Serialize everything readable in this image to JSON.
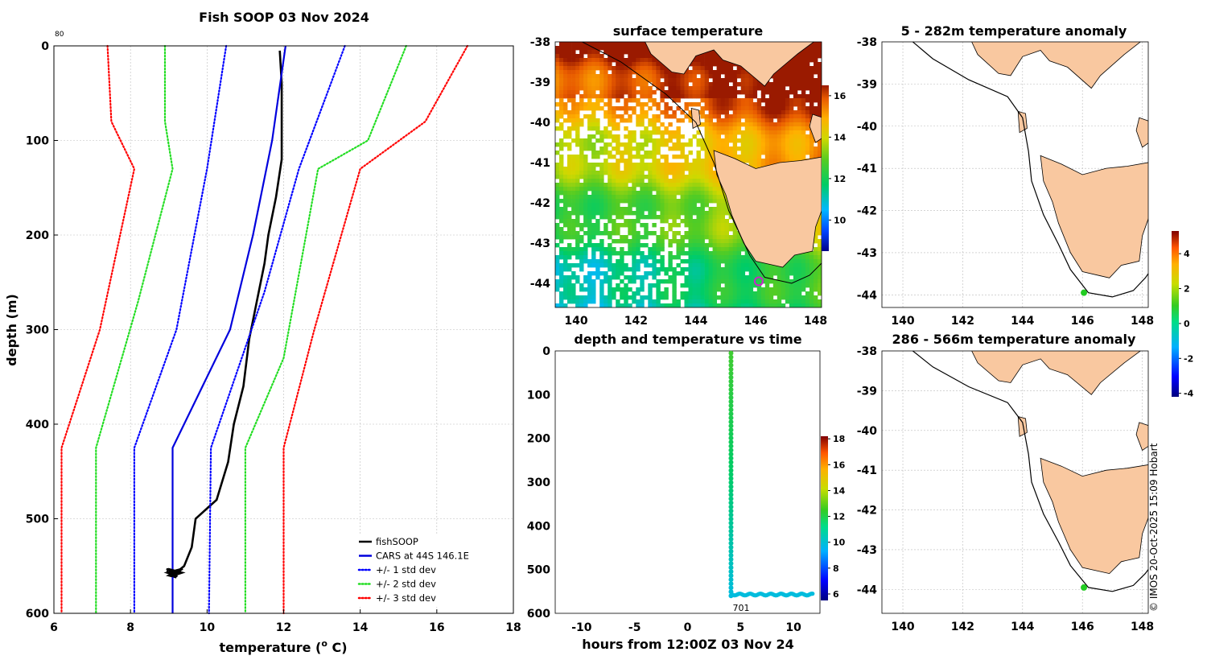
{
  "profile": {
    "title": "Fish SOOP 03 Nov 2024",
    "top_label": "80",
    "xlabel_pre": "temperature (",
    "xlabel_sup": "o",
    "xlabel_post": " C)",
    "ylabel": "depth (m)"
  },
  "surface": {
    "title": "surface temperature"
  },
  "timeplot": {
    "title": "depth and temperature vs time",
    "xlabel": "hours from 12:00Z 03 Nov 24",
    "annotation": "701"
  },
  "anom1": {
    "title": "5 - 282m temperature anomaly"
  },
  "anom2": {
    "title": "286 - 566m temperature anomaly"
  },
  "credit": "© IMOS 20-Oct-2025 15:09 Hobart",
  "colors": {
    "soop": "#000000",
    "cars": "#0000dd",
    "sd1": "#0000ff",
    "sd2": "#22dd22",
    "sd3": "#ff0000",
    "land": "#f9c8a0",
    "marker": "#22cc22",
    "marker_ring": "#cc22cc"
  },
  "chart_data": [
    {
      "type": "line",
      "name": "profile",
      "xlim": [
        6,
        18
      ],
      "ylim": [
        0,
        600
      ],
      "xticks": [
        6,
        8,
        10,
        12,
        14,
        16,
        18
      ],
      "yticks": [
        0,
        100,
        200,
        300,
        400,
        500,
        600
      ],
      "grid": true,
      "legend": [
        "fishSOOP",
        "CARS at 44S 146.1E",
        "+/- 1 std dev",
        "+/- 2 std dev",
        "+/- 3 std dev"
      ],
      "series": [
        {
          "name": "fishSOOP",
          "style": "solid-thick",
          "color": "soop",
          "points": [
            [
              11.9,
              5
            ],
            [
              11.95,
              40
            ],
            [
              11.95,
              120
            ],
            [
              11.8,
              160
            ],
            [
              11.6,
              200
            ],
            [
              11.5,
              230
            ],
            [
              11.3,
              270
            ],
            [
              11.1,
              310
            ],
            [
              10.95,
              360
            ],
            [
              10.7,
              400
            ],
            [
              10.55,
              440
            ],
            [
              10.25,
              480
            ],
            [
              9.7,
              500
            ],
            [
              9.6,
              530
            ],
            [
              9.4,
              550
            ],
            [
              9.1,
              560
            ],
            [
              9.0,
              557
            ],
            [
              9.3,
              554
            ],
            [
              9.0,
              560
            ],
            [
              9.2,
              562
            ]
          ]
        },
        {
          "name": "CARS at 44S 146.1E",
          "style": "solid",
          "color": "cars",
          "points": [
            [
              12.05,
              0
            ],
            [
              11.7,
              100
            ],
            [
              11.2,
              200
            ],
            [
              10.6,
              300
            ],
            [
              9.1,
              425
            ],
            [
              9.1,
              600
            ]
          ]
        },
        {
          "name": "+1 std dev",
          "style": "dotted",
          "color": "sd1",
          "points": [
            [
              13.6,
              0
            ],
            [
              12.4,
              130
            ],
            [
              11.5,
              260
            ],
            [
              10.1,
              425
            ],
            [
              10.05,
              600
            ]
          ]
        },
        {
          "name": "-1 std dev",
          "style": "dotted",
          "color": "sd1",
          "points": [
            [
              10.5,
              0
            ],
            [
              10.0,
              130
            ],
            [
              9.2,
              300
            ],
            [
              8.1,
              425
            ],
            [
              8.1,
              600
            ]
          ]
        },
        {
          "name": "+2 std dev",
          "style": "dotted",
          "color": "sd2",
          "points": [
            [
              15.2,
              0
            ],
            [
              14.2,
              100
            ],
            [
              12.9,
              130
            ],
            [
              12.0,
              330
            ],
            [
              11.0,
              425
            ],
            [
              11.0,
              600
            ]
          ]
        },
        {
          "name": "-2 std dev",
          "style": "dotted",
          "color": "sd2",
          "points": [
            [
              8.9,
              0
            ],
            [
              8.9,
              80
            ],
            [
              9.1,
              130
            ],
            [
              8.2,
              270
            ],
            [
              7.1,
              425
            ],
            [
              7.1,
              600
            ]
          ]
        },
        {
          "name": "+3 std dev",
          "style": "dotted",
          "color": "sd3",
          "points": [
            [
              16.8,
              0
            ],
            [
              15.7,
              80
            ],
            [
              14.0,
              130
            ],
            [
              12.8,
              300
            ],
            [
              12.0,
              425
            ],
            [
              12.0,
              600
            ]
          ]
        },
        {
          "name": "-3 std dev",
          "style": "dotted",
          "color": "sd3",
          "points": [
            [
              7.4,
              0
            ],
            [
              7.5,
              80
            ],
            [
              8.1,
              130
            ],
            [
              7.2,
              300
            ],
            [
              6.2,
              425
            ],
            [
              6.2,
              600
            ]
          ]
        }
      ]
    },
    {
      "type": "heatmap",
      "name": "surface",
      "title": "surface temperature",
      "xlim": [
        139.3,
        148.2
      ],
      "ylim": [
        -44.6,
        -38
      ],
      "xticks": [
        140,
        142,
        144,
        146,
        148
      ],
      "yticks": [
        -38,
        -39,
        -40,
        -41,
        -42,
        -43,
        -44
      ],
      "colorbar": {
        "range": [
          8.5,
          16.5
        ],
        "ticks": [
          10,
          12,
          14,
          16
        ]
      },
      "marker": [
        146.1,
        -43.95
      ]
    },
    {
      "type": "scatter",
      "name": "timeplot",
      "title": "depth and temperature vs time",
      "xlim": [
        -12.5,
        12.5
      ],
      "ylim": [
        0,
        600
      ],
      "xticks": [
        -10,
        -5,
        0,
        5,
        10
      ],
      "yticks": [
        0,
        100,
        200,
        300,
        400,
        500,
        600
      ],
      "colorbar": {
        "range": [
          5.5,
          18.2
        ],
        "ticks": [
          6,
          8,
          10,
          12,
          14,
          16,
          18
        ]
      },
      "descent": {
        "hours": 4.1,
        "depth_start": 5,
        "depth_end": 560,
        "temp_start": 12,
        "temp_end": 9.1
      },
      "bottom": {
        "hours_start": 4.2,
        "hours_end": 11.8,
        "depth": 555,
        "temp": 9.1
      }
    },
    {
      "type": "map",
      "name": "anomaly 5-282m",
      "title": "5 - 282m temperature anomaly",
      "xlim": [
        139.3,
        148.2
      ],
      "ylim": [
        -44.3,
        -38
      ],
      "xticks": [
        140,
        142,
        144,
        146,
        148
      ],
      "yticks": [
        -38,
        -39,
        -40,
        -41,
        -42,
        -43,
        -44
      ],
      "colorbar": {
        "range": [
          -4.2,
          5.3
        ],
        "ticks": [
          -4,
          -2,
          0,
          2,
          4
        ]
      },
      "marker": [
        146.05,
        -43.95
      ]
    },
    {
      "type": "map",
      "name": "anomaly 286-566m",
      "title": "286 - 566m temperature anomaly",
      "xlim": [
        139.3,
        148.2
      ],
      "ylim": [
        -44.6,
        -38
      ],
      "xticks": [
        140,
        142,
        144,
        146,
        148
      ],
      "yticks": [
        -38,
        -39,
        -40,
        -41,
        -42,
        -43,
        -44
      ],
      "marker": [
        146.05,
        -43.95
      ]
    }
  ]
}
